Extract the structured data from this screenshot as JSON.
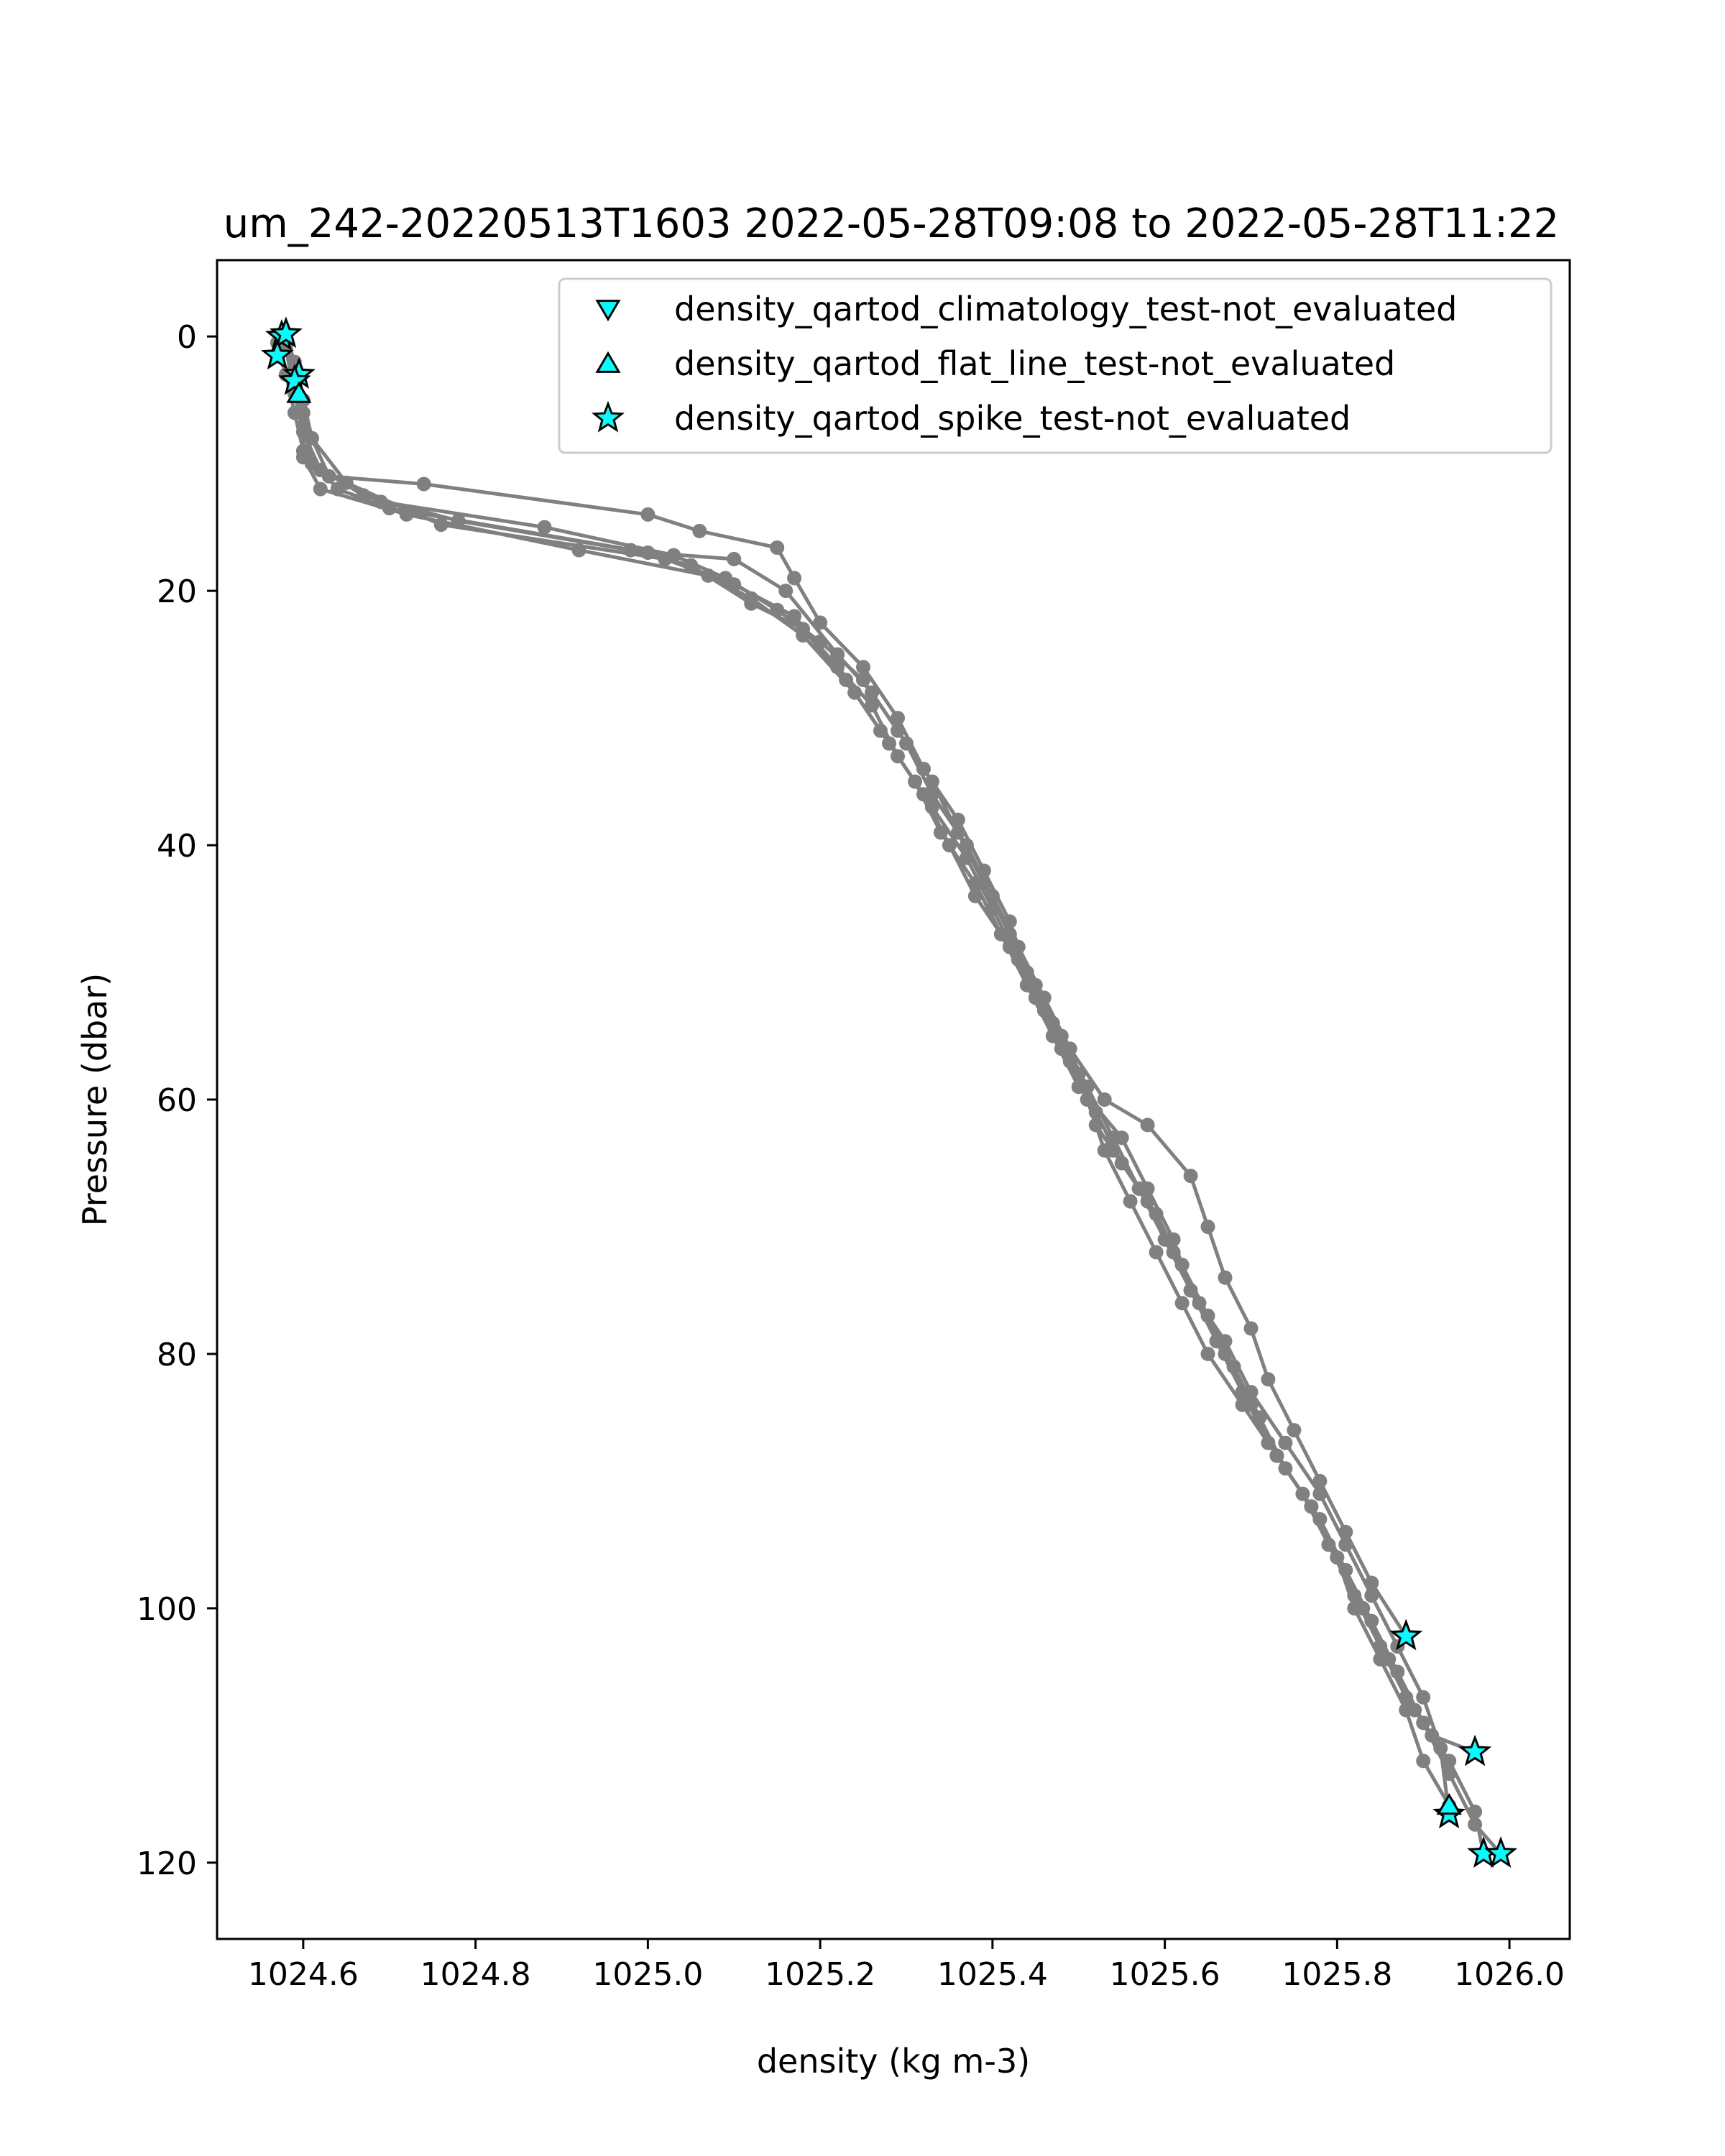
{
  "chart_data": {
    "type": "line",
    "title": "um_242-20220513T1603 2022-05-28T09:08 to 2022-05-28T11:22",
    "xlabel": "density (kg m-3)",
    "ylabel": "Pressure (dbar)",
    "xlim": [
      1024.5,
      1026.07
    ],
    "ylim": [
      126,
      -6
    ],
    "y_inverted": true,
    "xticks": [
      1024.6,
      1024.8,
      1025.0,
      1025.2,
      1025.4,
      1025.6,
      1025.8,
      1026.0
    ],
    "xtick_labels": [
      "1024.6",
      "1024.8",
      "1025.0",
      "1025.2",
      "1025.4",
      "1025.6",
      "1025.8",
      "1026.0"
    ],
    "yticks": [
      0,
      20,
      40,
      60,
      80,
      100,
      120
    ],
    "ytick_labels": [
      "0",
      "20",
      "40",
      "60",
      "80",
      "100",
      "120"
    ],
    "grid": false,
    "legend_position": "upper-right",
    "line_color": "#808080",
    "marker_color": "#00ffff",
    "profiles": [
      {
        "values": [
          [
            1024.58,
            0
          ],
          [
            1024.59,
            2
          ],
          [
            1024.6,
            5
          ],
          [
            1024.61,
            8
          ],
          [
            1024.63,
            11
          ],
          [
            1024.74,
            11.6
          ],
          [
            1025.0,
            14
          ],
          [
            1025.06,
            15.3
          ],
          [
            1025.15,
            16.6
          ],
          [
            1025.17,
            19
          ],
          [
            1025.2,
            22.5
          ],
          [
            1025.25,
            26
          ],
          [
            1025.29,
            30
          ],
          [
            1025.32,
            34
          ],
          [
            1025.36,
            38
          ],
          [
            1025.39,
            42
          ],
          [
            1025.42,
            46
          ],
          [
            1025.44,
            50
          ],
          [
            1025.47,
            54
          ],
          [
            1025.5,
            58
          ],
          [
            1025.52,
            62
          ],
          [
            1025.54,
            64
          ],
          [
            1025.58,
            68
          ],
          [
            1025.61,
            72
          ],
          [
            1025.64,
            76
          ],
          [
            1025.67,
            80
          ],
          [
            1025.7,
            84
          ],
          [
            1025.73,
            88
          ],
          [
            1025.77,
            92
          ],
          [
            1025.8,
            96
          ],
          [
            1025.83,
            100
          ],
          [
            1025.86,
            104
          ],
          [
            1025.89,
            108
          ],
          [
            1025.93,
            112
          ],
          [
            1025.96,
            116
          ],
          [
            1025.97,
            119.3
          ]
        ]
      },
      {
        "values": [
          [
            1024.57,
            0.5
          ],
          [
            1024.58,
            3
          ],
          [
            1024.59,
            6
          ],
          [
            1024.6,
            9
          ],
          [
            1024.64,
            12
          ],
          [
            1024.7,
            13.5
          ],
          [
            1025.0,
            17
          ],
          [
            1025.1,
            17.5
          ],
          [
            1025.16,
            20
          ],
          [
            1025.22,
            25
          ],
          [
            1025.26,
            28
          ],
          [
            1025.3,
            32
          ],
          [
            1025.33,
            36
          ],
          [
            1025.37,
            40
          ],
          [
            1025.4,
            44
          ],
          [
            1025.43,
            48
          ],
          [
            1025.46,
            52
          ],
          [
            1025.49,
            56
          ],
          [
            1025.53,
            60
          ],
          [
            1025.58,
            62
          ],
          [
            1025.63,
            66
          ],
          [
            1025.65,
            70
          ],
          [
            1025.67,
            74
          ],
          [
            1025.7,
            78
          ],
          [
            1025.72,
            82
          ],
          [
            1025.75,
            86
          ],
          [
            1025.78,
            90
          ],
          [
            1025.81,
            94
          ],
          [
            1025.84,
            98
          ],
          [
            1025.88,
            102.2
          ]
        ]
      },
      {
        "values": [
          [
            1024.57,
            1.5
          ],
          [
            1024.59,
            4
          ],
          [
            1024.6,
            7
          ],
          [
            1024.61,
            10
          ],
          [
            1024.67,
            12.5
          ],
          [
            1024.78,
            14.5
          ],
          [
            1024.98,
            16.8
          ],
          [
            1025.05,
            18
          ],
          [
            1025.12,
            21
          ],
          [
            1025.18,
            23
          ],
          [
            1025.23,
            27
          ],
          [
            1025.27,
            31
          ],
          [
            1025.31,
            35
          ],
          [
            1025.34,
            39
          ],
          [
            1025.38,
            43
          ],
          [
            1025.41,
            47
          ],
          [
            1025.44,
            51
          ],
          [
            1025.47,
            55
          ],
          [
            1025.5,
            59
          ],
          [
            1025.55,
            63
          ],
          [
            1025.58,
            67
          ],
          [
            1025.61,
            71
          ],
          [
            1025.63,
            75
          ],
          [
            1025.66,
            79
          ],
          [
            1025.69,
            83
          ],
          [
            1025.72,
            87
          ],
          [
            1025.76,
            91
          ],
          [
            1025.79,
            95
          ],
          [
            1025.82,
            99
          ],
          [
            1025.85,
            103
          ],
          [
            1025.88,
            107
          ],
          [
            1025.91,
            110
          ],
          [
            1025.96,
            111.3
          ]
        ]
      },
      {
        "values": [
          [
            1024.58,
            0.3
          ],
          [
            1024.59,
            2.5
          ],
          [
            1024.6,
            6
          ],
          [
            1024.6,
            9.5
          ],
          [
            1024.62,
            12
          ],
          [
            1024.72,
            14
          ],
          [
            1024.92,
            16.8
          ],
          [
            1025.07,
            18.8
          ],
          [
            1025.12,
            20.6
          ],
          [
            1025.18,
            23.5
          ],
          [
            1025.24,
            28
          ],
          [
            1025.28,
            32
          ],
          [
            1025.32,
            36
          ],
          [
            1025.35,
            40
          ],
          [
            1025.38,
            44
          ],
          [
            1025.42,
            48
          ],
          [
            1025.45,
            52
          ],
          [
            1025.48,
            56
          ],
          [
            1025.51,
            60
          ],
          [
            1025.53,
            64
          ],
          [
            1025.56,
            68
          ],
          [
            1025.59,
            72
          ],
          [
            1025.62,
            76
          ],
          [
            1025.65,
            80
          ],
          [
            1025.69,
            84
          ],
          [
            1025.73,
            88
          ],
          [
            1025.77,
            92
          ],
          [
            1025.8,
            96
          ],
          [
            1025.82,
            100
          ],
          [
            1025.85,
            104
          ],
          [
            1025.88,
            108
          ],
          [
            1025.9,
            112
          ],
          [
            1025.93,
            115.5
          ]
        ]
      },
      {
        "values": [
          [
            1024.59,
            3
          ],
          [
            1024.6,
            5
          ],
          [
            1024.61,
            8
          ],
          [
            1024.65,
            11.5
          ],
          [
            1024.76,
            14.8
          ],
          [
            1025.02,
            17.5
          ],
          [
            1025.1,
            19.5
          ],
          [
            1025.17,
            22
          ],
          [
            1025.22,
            26
          ],
          [
            1025.26,
            29
          ],
          [
            1025.29,
            33
          ],
          [
            1025.33,
            37
          ],
          [
            1025.37,
            41
          ],
          [
            1025.4,
            45
          ],
          [
            1025.43,
            49
          ],
          [
            1025.46,
            53
          ],
          [
            1025.49,
            57
          ],
          [
            1025.52,
            61
          ],
          [
            1025.55,
            65
          ],
          [
            1025.59,
            69
          ],
          [
            1025.62,
            73
          ],
          [
            1025.65,
            77
          ],
          [
            1025.68,
            81
          ],
          [
            1025.71,
            85
          ],
          [
            1025.74,
            89
          ],
          [
            1025.78,
            93
          ],
          [
            1025.81,
            97
          ],
          [
            1025.84,
            101
          ],
          [
            1025.87,
            105
          ],
          [
            1025.9,
            109
          ],
          [
            1025.93,
            113
          ],
          [
            1025.96,
            117
          ],
          [
            1025.99,
            119.3
          ]
        ]
      },
      {
        "values": [
          [
            1024.58,
            1
          ],
          [
            1024.59,
            4.5
          ],
          [
            1024.6,
            7.5
          ],
          [
            1024.62,
            10.5
          ],
          [
            1024.69,
            13
          ],
          [
            1024.88,
            15
          ],
          [
            1025.03,
            17.2
          ],
          [
            1025.09,
            19
          ],
          [
            1025.15,
            21.5
          ],
          [
            1025.2,
            24
          ],
          [
            1025.25,
            27
          ],
          [
            1025.29,
            31
          ],
          [
            1025.33,
            35
          ],
          [
            1025.36,
            39
          ],
          [
            1025.39,
            43
          ],
          [
            1025.42,
            47
          ],
          [
            1025.45,
            51
          ],
          [
            1025.48,
            55
          ],
          [
            1025.51,
            59
          ],
          [
            1025.54,
            63
          ],
          [
            1025.57,
            67
          ],
          [
            1025.6,
            71
          ],
          [
            1025.63,
            75
          ],
          [
            1025.67,
            79
          ],
          [
            1025.7,
            83
          ],
          [
            1025.74,
            87
          ],
          [
            1025.78,
            91
          ],
          [
            1025.81,
            95
          ],
          [
            1025.84,
            99
          ],
          [
            1025.87,
            103
          ],
          [
            1025.9,
            107
          ],
          [
            1025.92,
            111
          ],
          [
            1025.93,
            116.2
          ]
        ]
      }
    ],
    "markers": [
      {
        "series": "density_qartod_spike_test-not_evaluated",
        "shape": "star",
        "values": [
          [
            1024.575,
            0
          ],
          [
            1024.58,
            -0.2
          ],
          [
            1024.57,
            1.5
          ],
          [
            1024.595,
            3
          ],
          [
            1024.59,
            3.5
          ],
          [
            1025.88,
            102.2
          ],
          [
            1025.96,
            111.3
          ],
          [
            1025.97,
            119.3
          ],
          [
            1025.99,
            119.3
          ],
          [
            1025.93,
            116.2
          ]
        ]
      },
      {
        "series": "density_qartod_flat_line_test-not_evaluated",
        "shape": "triangle-up",
        "values": [
          [
            1024.595,
            4.5
          ],
          [
            1025.93,
            115.5
          ]
        ]
      }
    ],
    "legend": [
      {
        "label": "density_qartod_climatology_test-not_evaluated",
        "shape": "triangle-down"
      },
      {
        "label": "density_qartod_flat_line_test-not_evaluated",
        "shape": "triangle-up"
      },
      {
        "label": "density_qartod_spike_test-not_evaluated",
        "shape": "star"
      }
    ]
  }
}
